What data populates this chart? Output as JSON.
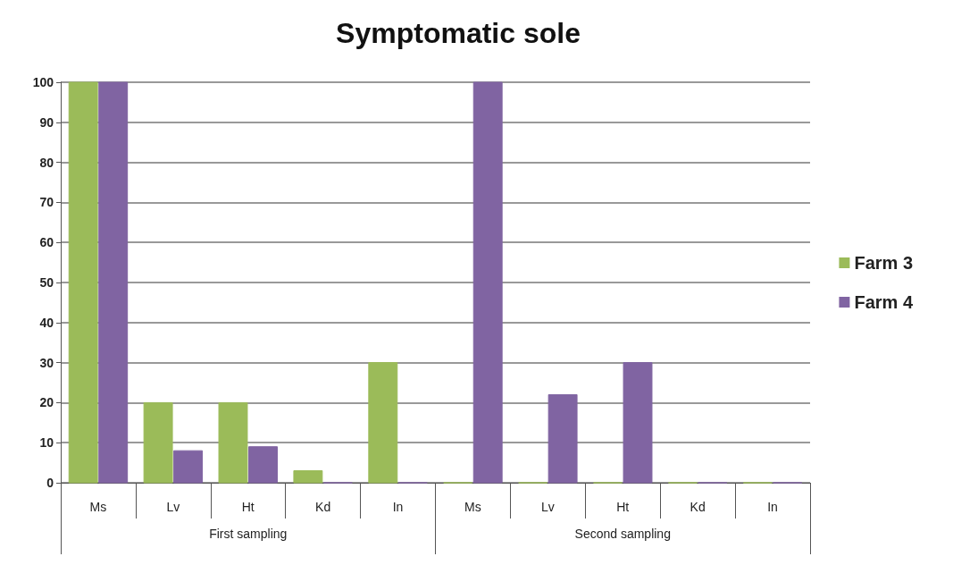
{
  "chart_data": {
    "type": "bar",
    "title": "Symptomatic sole",
    "categories": [
      "Ms",
      "Lv",
      "Ht",
      "Kd",
      "In",
      "Ms",
      "Lv",
      "Ht",
      "Kd",
      "In"
    ],
    "series": [
      {
        "name": "Farm 3",
        "color": "#9bbb59",
        "values": [
          100,
          20,
          20,
          3,
          30,
          0,
          0,
          0,
          0,
          0
        ]
      },
      {
        "name": "Farm 4",
        "color": "#8064a2",
        "values": [
          100,
          8,
          9,
          0,
          0,
          100,
          22,
          30,
          0,
          0
        ]
      }
    ],
    "annotations": [
      "First sampling",
      "Second sampling"
    ],
    "ylim": [
      0,
      100
    ],
    "yticks": [
      0,
      10,
      20,
      30,
      40,
      50,
      60,
      70,
      80,
      90,
      100
    ],
    "grid": "y",
    "legend": "right"
  }
}
